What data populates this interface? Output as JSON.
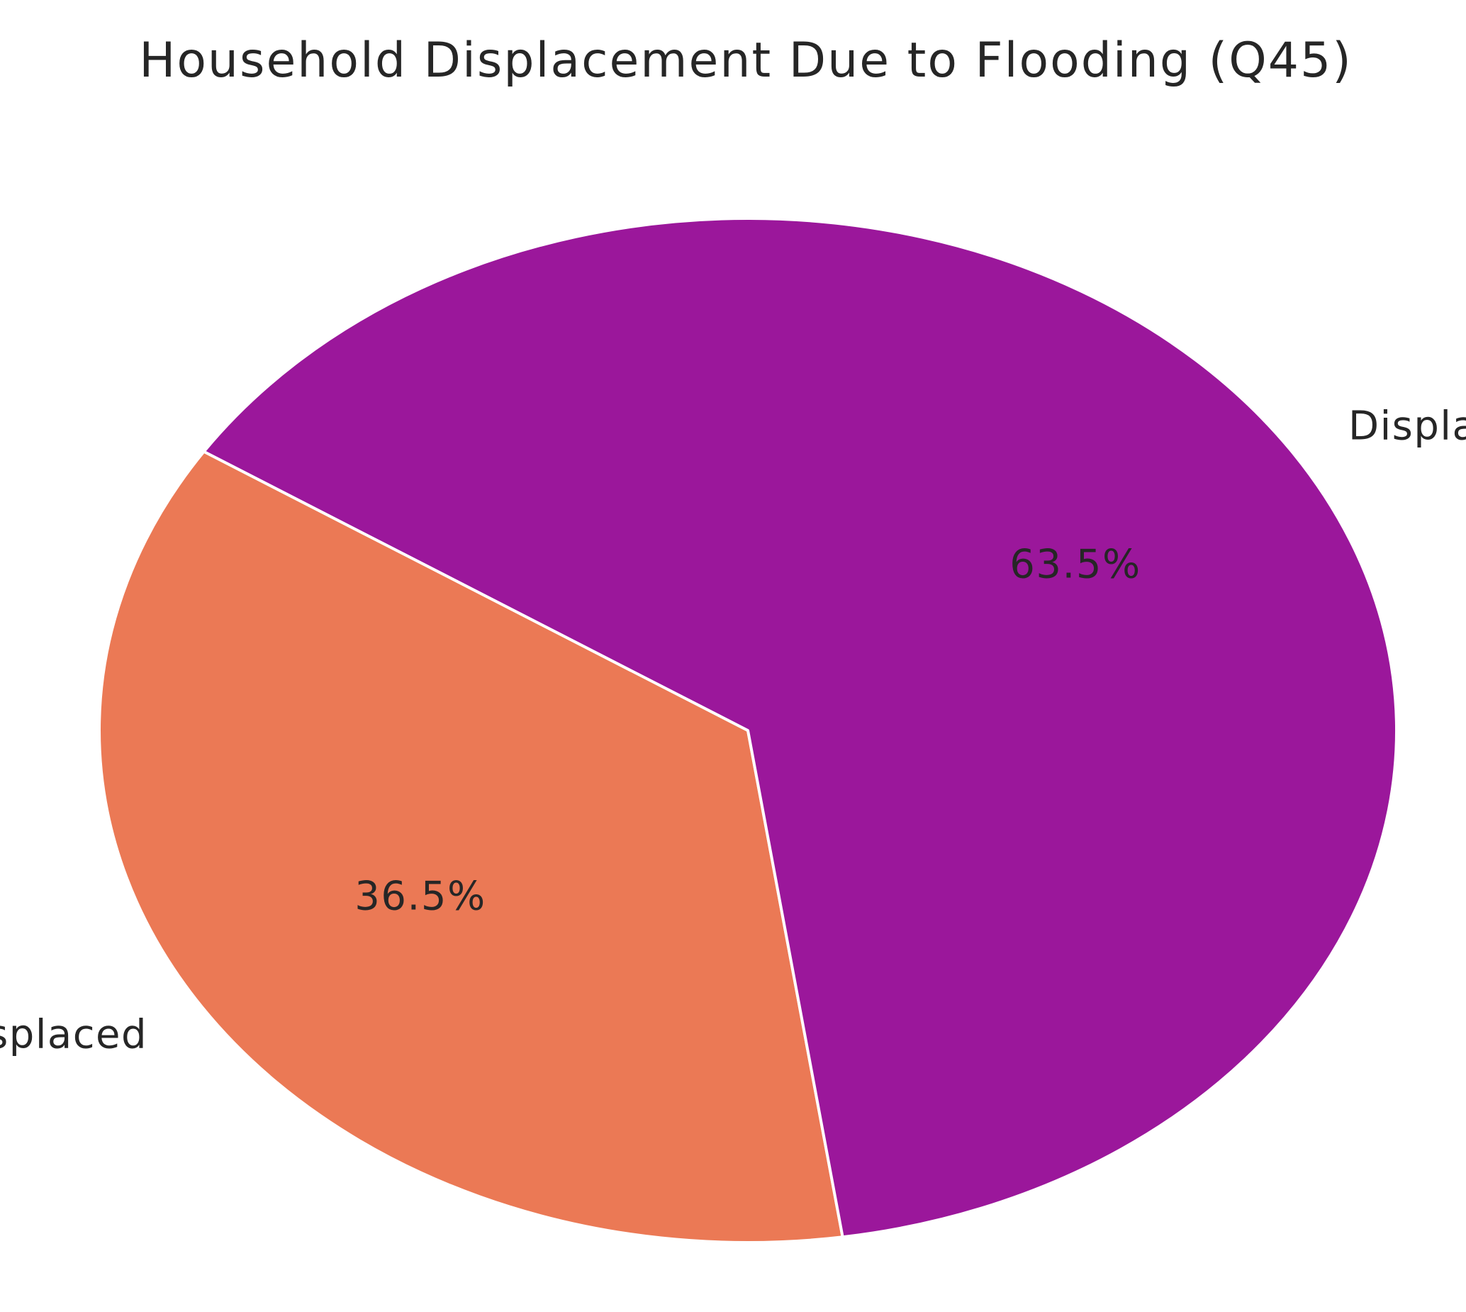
{
  "chart_data": {
    "type": "pie",
    "title": "Household Displacement Due to Flooding (Q45)",
    "categories": [
      "Not Displaced",
      "Displaced"
    ],
    "values": [
      36.5,
      63.5
    ],
    "percent_labels": [
      "36.5%",
      "63.5%"
    ],
    "colors": [
      "#eb7955",
      "#9b179b"
    ],
    "edge_color": "#ffffff"
  }
}
